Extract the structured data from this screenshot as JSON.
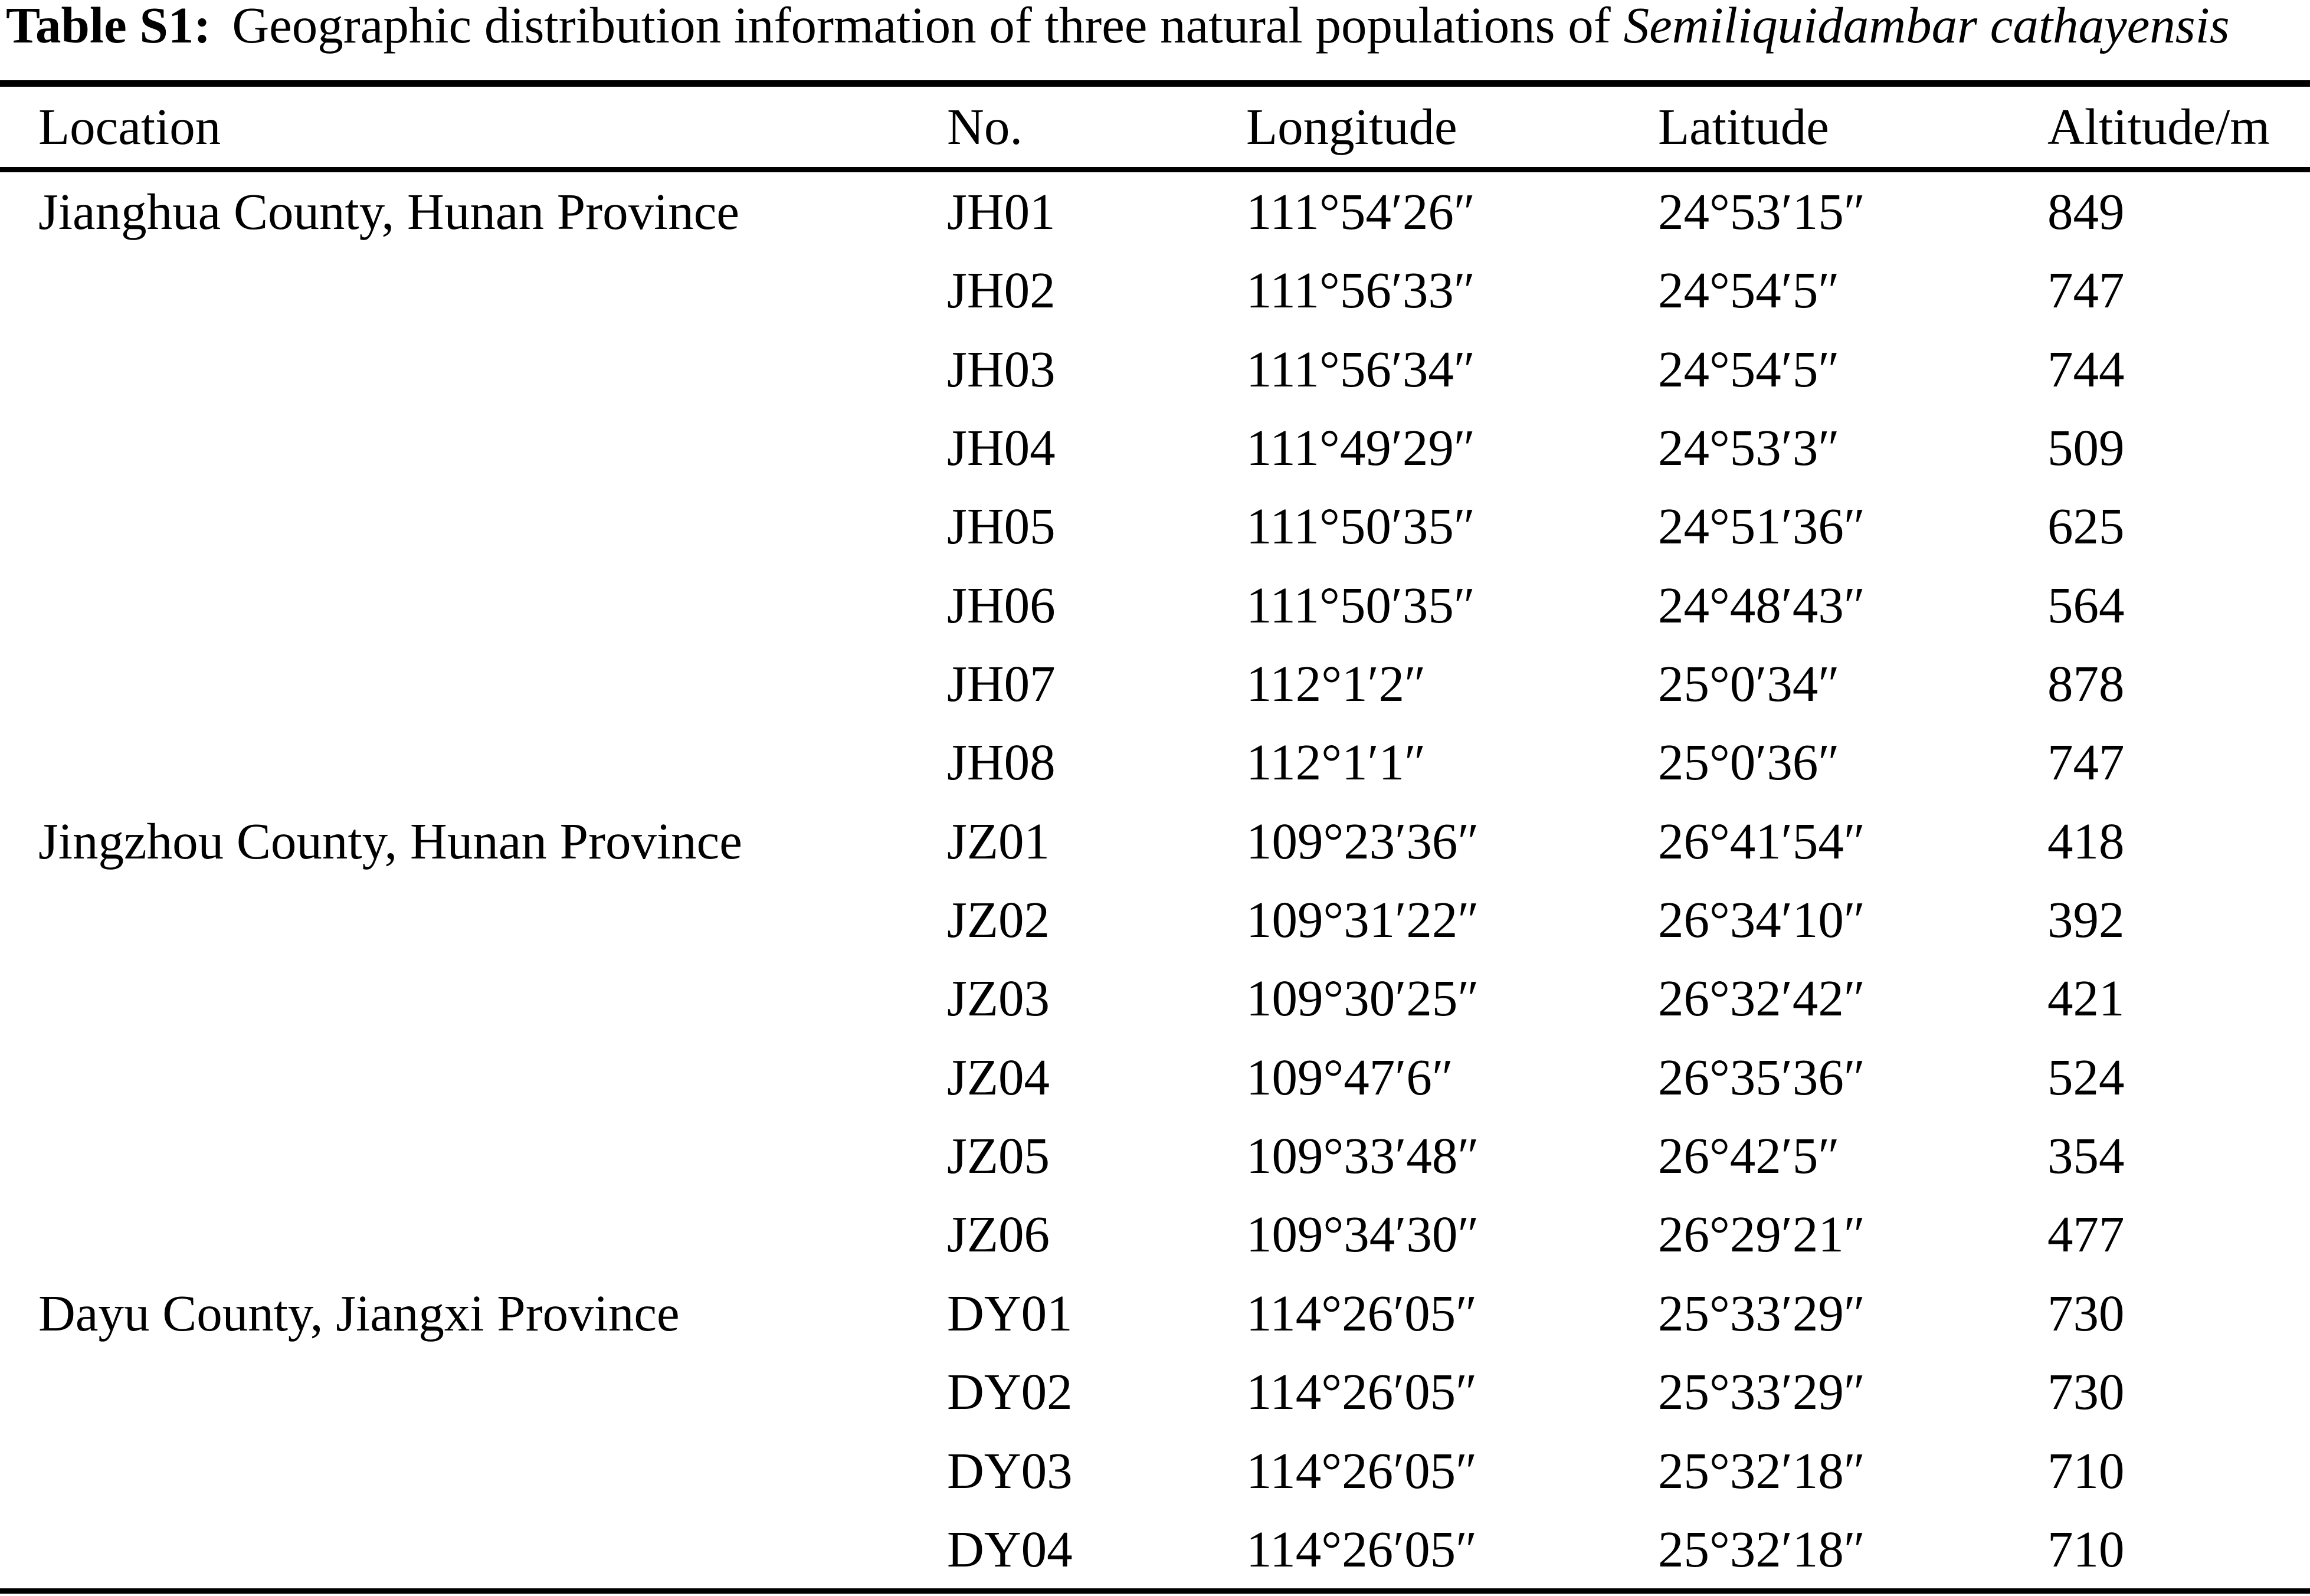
{
  "colors": {
    "text": "#000000",
    "background": "#ffffff"
  },
  "title": {
    "label": "Table S1:",
    "text": "Geographic distribution information of three natural populations of",
    "species": "Semiliquidambar cathayensis"
  },
  "table": {
    "columns": [
      "Location",
      "No.",
      "Longitude",
      "Latitude",
      "Altitude/m"
    ],
    "rows": [
      {
        "location": "Jianghua County, Hunan Province",
        "no": "JH01",
        "longitude": "111°54′26″",
        "latitude": "24°53′15″",
        "altitude": "849"
      },
      {
        "location": "",
        "no": "JH02",
        "longitude": "111°56′33″",
        "latitude": "24°54′5″",
        "altitude": "747"
      },
      {
        "location": "",
        "no": "JH03",
        "longitude": "111°56′34″",
        "latitude": "24°54′5″",
        "altitude": "744"
      },
      {
        "location": "",
        "no": "JH04",
        "longitude": "111°49′29″",
        "latitude": "24°53′3″",
        "altitude": "509"
      },
      {
        "location": "",
        "no": "JH05",
        "longitude": "111°50′35″",
        "latitude": "24°51′36″",
        "altitude": "625"
      },
      {
        "location": "",
        "no": "JH06",
        "longitude": "111°50′35″",
        "latitude": "24°48′43″",
        "altitude": "564"
      },
      {
        "location": "",
        "no": "JH07",
        "longitude": "112°1′2″",
        "latitude": "25°0′34″",
        "altitude": "878"
      },
      {
        "location": "",
        "no": "JH08",
        "longitude": "112°1′1″",
        "latitude": "25°0′36″",
        "altitude": "747"
      },
      {
        "location": "Jingzhou County, Hunan Province",
        "no": "JZ01",
        "longitude": "109°23′36″",
        "latitude": "26°41′54″",
        "altitude": "418"
      },
      {
        "location": "",
        "no": "JZ02",
        "longitude": "109°31′22″",
        "latitude": "26°34′10″",
        "altitude": "392"
      },
      {
        "location": "",
        "no": "JZ03",
        "longitude": "109°30′25″",
        "latitude": "26°32′42″",
        "altitude": "421"
      },
      {
        "location": "",
        "no": "JZ04",
        "longitude": "109°47′6″",
        "latitude": "26°35′36″",
        "altitude": "524"
      },
      {
        "location": "",
        "no": "JZ05",
        "longitude": "109°33′48″",
        "latitude": "26°42′5″",
        "altitude": "354"
      },
      {
        "location": "",
        "no": "JZ06",
        "longitude": "109°34′30″",
        "latitude": "26°29′21″",
        "altitude": "477"
      },
      {
        "location": "Dayu County, Jiangxi Province",
        "no": "DY01",
        "longitude": "114°26′05″",
        "latitude": "25°33′29″",
        "altitude": "730"
      },
      {
        "location": "",
        "no": "DY02",
        "longitude": "114°26′05″",
        "latitude": "25°33′29″",
        "altitude": "730"
      },
      {
        "location": "",
        "no": "DY03",
        "longitude": "114°26′05″",
        "latitude": "25°32′18″",
        "altitude": "710"
      },
      {
        "location": "",
        "no": "DY04",
        "longitude": "114°26′05″",
        "latitude": "25°32′18″",
        "altitude": "710"
      }
    ]
  }
}
